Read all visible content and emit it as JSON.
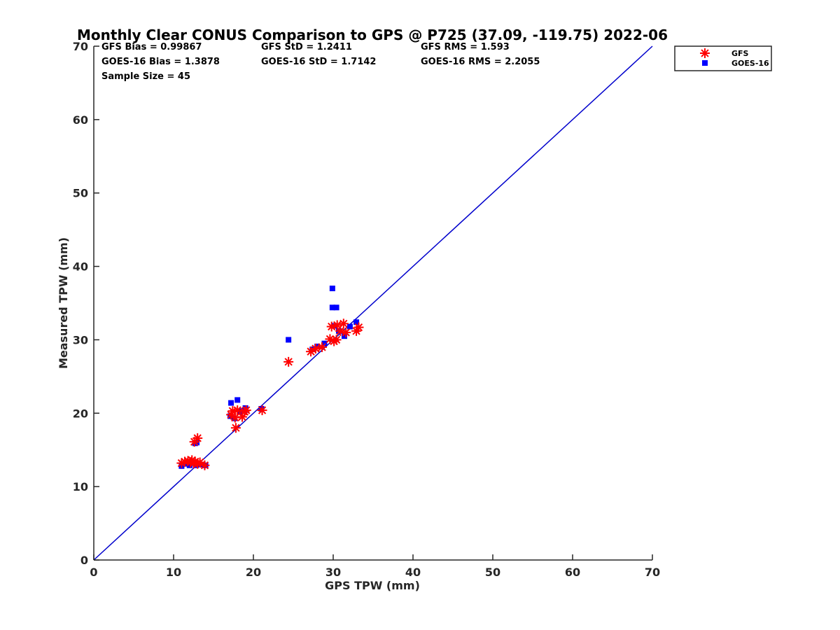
{
  "chart_data": {
    "type": "scatter",
    "title": "Monthly Clear CONUS Comparison to GPS @ P725 (37.09, -119.75) 2022-06",
    "xlabel": "GPS TPW (mm)",
    "ylabel": "Measured TPW (mm)",
    "xlim": [
      0,
      70
    ],
    "ylim": [
      0,
      70
    ],
    "xticks": [
      "0",
      "10",
      "20",
      "30",
      "40",
      "50",
      "60",
      "70"
    ],
    "yticks": [
      "0",
      "10",
      "20",
      "30",
      "40",
      "50",
      "60",
      "70"
    ],
    "grid": false,
    "legend_position": "outside-top-right",
    "stats": [
      [
        "GFS Bias = 0.99867",
        "GFS StD = 1.2411",
        "GFS RMS = 1.593"
      ],
      [
        "GOES-16 Bias = 1.3878",
        "GOES-16 StD = 1.7142",
        "GOES-16 RMS = 2.2055"
      ],
      [
        "Sample Size = 45"
      ]
    ],
    "reference_line": {
      "name": "1:1",
      "x": [
        0,
        70
      ],
      "y": [
        0,
        70
      ],
      "color": "#0000cc"
    },
    "series": [
      {
        "name": "GFS",
        "marker": "asterisk",
        "color": "#ff0000",
        "points": [
          [
            11.0,
            13.2
          ],
          [
            11.4,
            13.4
          ],
          [
            11.8,
            13.5
          ],
          [
            12.1,
            13.3
          ],
          [
            12.3,
            13.6
          ],
          [
            12.5,
            13.2
          ],
          [
            12.7,
            13.4
          ],
          [
            13.0,
            13.1
          ],
          [
            13.3,
            13.3
          ],
          [
            13.9,
            12.9
          ],
          [
            12.6,
            16.1
          ],
          [
            13.0,
            16.6
          ],
          [
            17.2,
            19.8
          ],
          [
            17.4,
            20.3
          ],
          [
            17.7,
            19.4
          ],
          [
            17.8,
            18.0
          ],
          [
            18.0,
            20.4
          ],
          [
            18.6,
            19.5
          ],
          [
            18.9,
            20.2
          ],
          [
            19.1,
            20.4
          ],
          [
            21.1,
            20.4
          ],
          [
            24.4,
            27.0
          ],
          [
            27.2,
            28.4
          ],
          [
            27.8,
            28.8
          ],
          [
            28.6,
            29.0
          ],
          [
            29.6,
            30.1
          ],
          [
            30.1,
            29.8
          ],
          [
            30.4,
            30.0
          ],
          [
            29.8,
            31.8
          ],
          [
            30.5,
            32.0
          ],
          [
            31.3,
            32.2
          ],
          [
            30.9,
            31.2
          ],
          [
            31.6,
            31.0
          ],
          [
            32.9,
            31.2
          ],
          [
            33.2,
            31.7
          ]
        ]
      },
      {
        "name": "GOES-16",
        "marker": "square",
        "color": "#0000ff",
        "points": [
          [
            11.0,
            12.8
          ],
          [
            11.5,
            13.1
          ],
          [
            12.0,
            12.9
          ],
          [
            12.3,
            13.2
          ],
          [
            12.8,
            12.9
          ],
          [
            13.4,
            13.0
          ],
          [
            14.0,
            12.9
          ],
          [
            12.7,
            15.9
          ],
          [
            12.9,
            16.0
          ],
          [
            17.2,
            21.4
          ],
          [
            18.0,
            21.8
          ],
          [
            17.1,
            19.6
          ],
          [
            17.6,
            19.3
          ],
          [
            18.3,
            20.2
          ],
          [
            18.6,
            20.3
          ],
          [
            18.9,
            20.4
          ],
          [
            19.0,
            20.7
          ],
          [
            21.0,
            20.6
          ],
          [
            24.4,
            30.0
          ],
          [
            27.4,
            28.7
          ],
          [
            28.0,
            29.1
          ],
          [
            28.9,
            29.5
          ],
          [
            29.9,
            37.0
          ],
          [
            29.9,
            34.4
          ],
          [
            30.4,
            34.4
          ],
          [
            30.2,
            31.9
          ],
          [
            30.7,
            31.2
          ],
          [
            31.4,
            30.5
          ],
          [
            32.1,
            31.8
          ],
          [
            32.9,
            32.4
          ]
        ]
      }
    ]
  }
}
